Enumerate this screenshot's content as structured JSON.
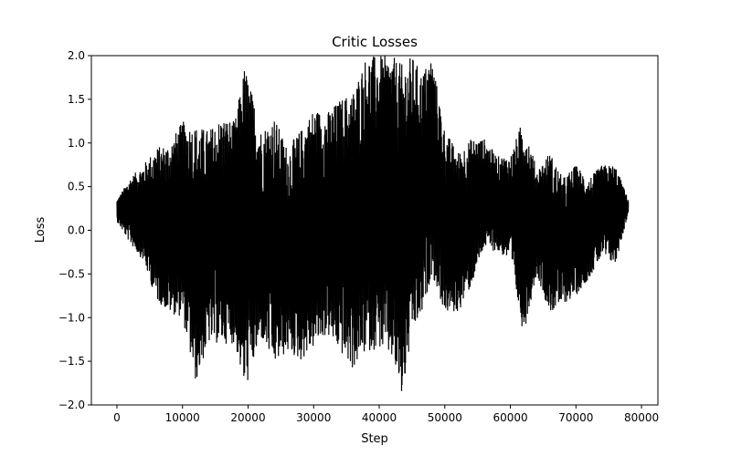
{
  "chart_data": {
    "type": "line",
    "title": "Critic Losses",
    "xlabel": "Step",
    "ylabel": "Loss",
    "xlim": [
      -3900,
      82500
    ],
    "ylim": [
      -2.0,
      2.0
    ],
    "xticks": [
      0,
      10000,
      20000,
      30000,
      40000,
      50000,
      60000,
      70000,
      80000
    ],
    "xtick_labels": [
      "0",
      "10000",
      "20000",
      "30000",
      "40000",
      "50000",
      "60000",
      "70000",
      "80000"
    ],
    "yticks": [
      -2.0,
      -1.5,
      -1.0,
      -0.5,
      0.0,
      0.5,
      1.0,
      1.5,
      2.0
    ],
    "ytick_labels": [
      "−2.0",
      "−1.5",
      "−1.0",
      "−0.5",
      "0.0",
      "0.5",
      "1.0",
      "1.5",
      "2.0"
    ],
    "grid": false,
    "series": [
      {
        "color": "#000000",
        "envelope": {
          "x": [
            0,
            2000,
            4000,
            6000,
            8000,
            10000,
            12000,
            14000,
            16000,
            18000,
            19500,
            22000,
            24000,
            26000,
            28000,
            30000,
            32000,
            34000,
            36000,
            38000,
            40000,
            42000,
            43500,
            45000,
            46500,
            48000,
            50000,
            52000,
            54000,
            56000,
            58000,
            60000,
            62000,
            64000,
            66000,
            68000,
            70000,
            72000,
            74000,
            76000,
            78000
          ],
          "upper": [
            0.35,
            0.6,
            0.75,
            0.95,
            1.0,
            1.25,
            1.2,
            1.15,
            1.3,
            1.25,
            1.9,
            1.15,
            1.3,
            0.95,
            1.15,
            1.4,
            1.35,
            1.5,
            1.6,
            2.0,
            2.0,
            2.0,
            1.9,
            2.0,
            1.8,
            2.0,
            1.15,
            0.9,
            1.05,
            1.05,
            0.85,
            0.85,
            1.3,
            0.7,
            0.9,
            0.6,
            0.75,
            0.6,
            0.75,
            0.75,
            0.35
          ],
          "lower": [
            0.1,
            -0.15,
            -0.35,
            -0.8,
            -0.95,
            -1.0,
            -1.75,
            -1.3,
            -1.3,
            -1.3,
            -1.85,
            -1.25,
            -1.55,
            -1.4,
            -1.5,
            -1.35,
            -1.2,
            -1.4,
            -1.6,
            -1.4,
            -1.35,
            -1.5,
            -1.95,
            -1.2,
            -1.0,
            -0.5,
            -0.95,
            -0.95,
            -0.65,
            -0.2,
            -0.25,
            -0.35,
            -1.2,
            -0.5,
            -0.95,
            -0.85,
            -0.75,
            -0.55,
            -0.3,
            -0.4,
            0.2
          ]
        }
      }
    ]
  }
}
